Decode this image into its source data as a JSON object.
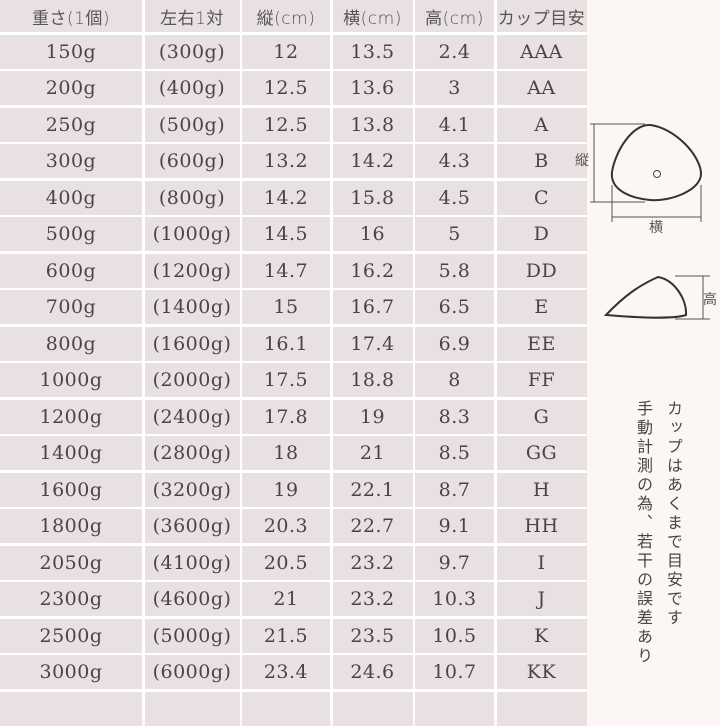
{
  "headers": [
    "重さ(1個)",
    "左右1対",
    "縦(cm)",
    "横(cm)",
    "高(cm)",
    "カップ目安"
  ],
  "rows": [
    [
      "150g",
      "(300g)",
      "12",
      "13.5",
      "2.4",
      "AAA"
    ],
    [
      "200g",
      "(400g)",
      "12.5",
      "13.6",
      "3",
      "AA"
    ],
    [
      "250g",
      "(500g)",
      "12.5",
      "13.8",
      "4.1",
      "A"
    ],
    [
      "300g",
      "(600g)",
      "13.2",
      "14.2",
      "4.3",
      "B"
    ],
    [
      "400g",
      "(800g)",
      "14.2",
      "15.8",
      "4.5",
      "C"
    ],
    [
      "500g",
      "(1000g)",
      "14.5",
      "16",
      "5",
      "D"
    ],
    [
      "600g",
      "(1200g)",
      "14.7",
      "16.2",
      "5.8",
      "DD"
    ],
    [
      "700g",
      "(1400g)",
      "15",
      "16.7",
      "6.5",
      "E"
    ],
    [
      "800g",
      "(1600g)",
      "16.1",
      "17.4",
      "6.9",
      "EE"
    ],
    [
      "1000g",
      "(2000g)",
      "17.5",
      "18.8",
      "8",
      "FF"
    ],
    [
      "1200g",
      "(2400g)",
      "17.8",
      "19",
      "8.3",
      "G"
    ],
    [
      "1400g",
      "(2800g)",
      "18",
      "21",
      "8.5",
      "GG"
    ],
    [
      "1600g",
      "(3200g)",
      "19",
      "22.1",
      "8.7",
      "H"
    ],
    [
      "1800g",
      "(3600g)",
      "20.3",
      "22.7",
      "9.1",
      "HH"
    ],
    [
      "2050g",
      "(4100g)",
      "20.5",
      "23.2",
      "9.7",
      "I"
    ],
    [
      "2300g",
      "(4600g)",
      "21",
      "23.2",
      "10.3",
      "J"
    ],
    [
      "2500g",
      "(5000g)",
      "21.5",
      "23.5",
      "10.5",
      "K"
    ],
    [
      "3000g",
      "(6000g)",
      "23.4",
      "24.6",
      "10.7",
      "KK"
    ],
    [
      "",
      "",
      "",
      "",
      "",
      ""
    ]
  ],
  "diagram": {
    "length_label": "縦",
    "width_label": "横",
    "height_label": "高"
  },
  "note": {
    "line1": "カップはあくまで目安です",
    "line2": "手動計測の為、若干の誤差あり"
  }
}
